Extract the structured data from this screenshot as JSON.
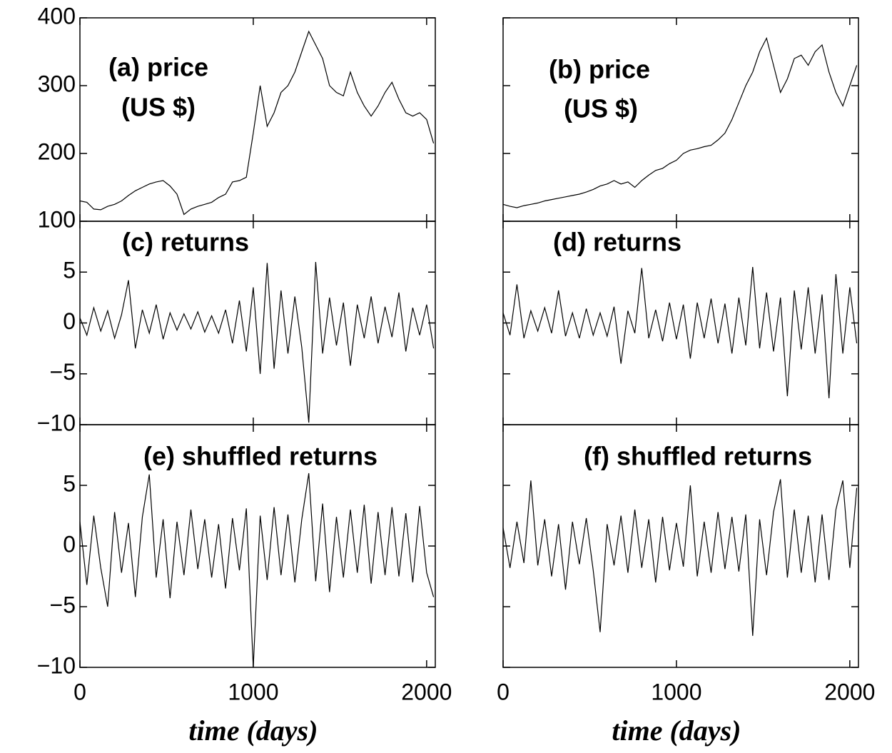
{
  "chart_data": [
    {
      "type": "line",
      "title": "(a) price",
      "subtitle": "(US $)",
      "x": [
        0,
        40,
        80,
        120,
        160,
        200,
        240,
        280,
        320,
        360,
        400,
        440,
        480,
        520,
        560,
        600,
        640,
        680,
        720,
        760,
        800,
        840,
        880,
        920,
        960,
        1000,
        1040,
        1080,
        1120,
        1160,
        1200,
        1240,
        1280,
        1320,
        1360,
        1400,
        1440,
        1480,
        1520,
        1560,
        1600,
        1640,
        1680,
        1720,
        1760,
        1800,
        1840,
        1880,
        1920,
        1960,
        2000,
        2040
      ],
      "values": [
        130,
        128,
        118,
        117,
        122,
        125,
        130,
        138,
        145,
        150,
        155,
        158,
        160,
        152,
        140,
        110,
        118,
        122,
        125,
        128,
        135,
        140,
        158,
        160,
        165,
        230,
        300,
        240,
        260,
        290,
        300,
        320,
        350,
        380,
        360,
        340,
        300,
        290,
        285,
        320,
        290,
        270,
        255,
        270,
        290,
        305,
        280,
        260,
        255,
        260,
        250,
        215
      ],
      "xlim": [
        0,
        2050
      ],
      "xticks": [
        0,
        1000,
        2000
      ],
      "ylim": [
        100,
        400
      ],
      "yticks": [
        100,
        200,
        300,
        400
      ],
      "color": "#000000"
    },
    {
      "type": "line",
      "title": "(b) price",
      "subtitle": "(US $)",
      "x": [
        0,
        40,
        80,
        120,
        160,
        200,
        240,
        280,
        320,
        360,
        400,
        440,
        480,
        520,
        560,
        600,
        640,
        680,
        720,
        760,
        800,
        840,
        880,
        920,
        960,
        1000,
        1040,
        1080,
        1120,
        1160,
        1200,
        1240,
        1280,
        1320,
        1360,
        1400,
        1440,
        1480,
        1520,
        1560,
        1600,
        1640,
        1680,
        1720,
        1760,
        1800,
        1840,
        1880,
        1920,
        1960,
        2000,
        2040
      ],
      "values": [
        125,
        122,
        120,
        123,
        125,
        127,
        130,
        132,
        134,
        136,
        138,
        140,
        143,
        147,
        152,
        155,
        160,
        155,
        158,
        150,
        160,
        168,
        175,
        178,
        185,
        190,
        200,
        205,
        207,
        210,
        212,
        220,
        230,
        250,
        275,
        300,
        320,
        350,
        370,
        330,
        290,
        310,
        340,
        345,
        330,
        350,
        360,
        320,
        290,
        270,
        300,
        330
      ],
      "xlim": [
        0,
        2050
      ],
      "xticks": [
        0,
        1000,
        2000
      ],
      "ylim": [
        100,
        400
      ],
      "yticks": [
        100,
        200,
        300,
        400
      ],
      "color": "#000000"
    },
    {
      "type": "line",
      "title": "(c) returns",
      "x": [
        0,
        40,
        80,
        120,
        160,
        200,
        240,
        280,
        320,
        360,
        400,
        440,
        480,
        520,
        560,
        600,
        640,
        680,
        720,
        760,
        800,
        840,
        880,
        920,
        960,
        1000,
        1040,
        1080,
        1120,
        1160,
        1200,
        1240,
        1280,
        1320,
        1360,
        1400,
        1440,
        1480,
        1520,
        1560,
        1600,
        1640,
        1680,
        1720,
        1760,
        1800,
        1840,
        1880,
        1920,
        1960,
        2000,
        2040
      ],
      "values": [
        0.5,
        -1.2,
        1.5,
        -0.8,
        1.2,
        -1.5,
        0.8,
        4.2,
        -2.5,
        1.3,
        -1.0,
        1.8,
        -1.6,
        1.0,
        -0.7,
        0.9,
        -0.6,
        1.1,
        -0.9,
        0.7,
        -1.0,
        1.3,
        -2.0,
        2.2,
        -2.8,
        3.5,
        -5.0,
        5.9,
        -4.5,
        3.2,
        -3.0,
        2.6,
        -2.4,
        -9.8,
        6.0,
        -3.0,
        2.5,
        -2.2,
        2.0,
        -4.2,
        1.8,
        -1.5,
        2.6,
        -2.0,
        1.6,
        -1.4,
        3.0,
        -2.8,
        1.5,
        -1.2,
        1.8,
        -2.5
      ],
      "xlim": [
        0,
        2050
      ],
      "xticks": [
        0,
        1000,
        2000
      ],
      "ylim": [
        -10,
        10
      ],
      "yticks": [
        {
          "value": -10,
          "label": "−10"
        },
        {
          "value": -5,
          "label": "−5"
        },
        0,
        5
      ],
      "color": "#000000"
    },
    {
      "type": "line",
      "title": "(d) returns",
      "x": [
        0,
        40,
        80,
        120,
        160,
        200,
        240,
        280,
        320,
        360,
        400,
        440,
        480,
        520,
        560,
        600,
        640,
        680,
        720,
        760,
        800,
        840,
        880,
        920,
        960,
        1000,
        1040,
        1080,
        1120,
        1160,
        1200,
        1240,
        1280,
        1320,
        1360,
        1400,
        1440,
        1480,
        1520,
        1560,
        1600,
        1640,
        1680,
        1720,
        1760,
        1800,
        1840,
        1880,
        1920,
        1960,
        2000,
        2040
      ],
      "values": [
        1.0,
        -1.2,
        3.8,
        -1.5,
        1.2,
        -0.8,
        1.5,
        -1.0,
        3.2,
        -1.3,
        1.0,
        -1.5,
        1.4,
        -1.2,
        1.0,
        -1.3,
        1.6,
        -4.0,
        1.2,
        -1.0,
        5.4,
        -1.5,
        1.3,
        -1.8,
        2.0,
        -1.6,
        1.8,
        -3.5,
        2.0,
        -1.5,
        2.4,
        -2.0,
        1.9,
        -3.0,
        2.5,
        -2.2,
        5.5,
        -2.5,
        3.0,
        -2.8,
        2.5,
        -7.2,
        3.2,
        -2.6,
        3.5,
        -3.0,
        2.8,
        -7.4,
        4.8,
        -3.0,
        3.5,
        -2.0
      ],
      "xlim": [
        0,
        2050
      ],
      "xticks": [
        0,
        1000,
        2000
      ],
      "ylim": [
        -10,
        10
      ],
      "yticks": [
        -10,
        -5,
        0,
        5
      ],
      "color": "#000000"
    },
    {
      "type": "line",
      "title": "(e) shuffled returns",
      "xlabel": "time (days)",
      "x": [
        0,
        40,
        80,
        120,
        160,
        200,
        240,
        280,
        320,
        360,
        400,
        440,
        480,
        520,
        560,
        600,
        640,
        680,
        720,
        760,
        800,
        840,
        880,
        920,
        960,
        1000,
        1040,
        1080,
        1120,
        1160,
        1200,
        1240,
        1280,
        1320,
        1360,
        1400,
        1440,
        1480,
        1520,
        1560,
        1600,
        1640,
        1680,
        1720,
        1760,
        1800,
        1840,
        1880,
        1920,
        1960,
        2000,
        2040
      ],
      "values": [
        2.0,
        -3.2,
        2.5,
        -1.8,
        -5.0,
        2.8,
        -2.2,
        1.9,
        -4.2,
        2.4,
        5.9,
        -2.6,
        2.2,
        -4.3,
        2.0,
        -2.4,
        3.0,
        -1.9,
        2.2,
        -2.6,
        1.8,
        -3.5,
        2.3,
        -2.0,
        3.1,
        -10,
        2.5,
        -2.8,
        3.2,
        -2.4,
        2.6,
        -3.0,
        2.2,
        6.0,
        -2.9,
        3.5,
        -3.8,
        2.4,
        -2.6,
        3.0,
        -2.2,
        3.4,
        -3.1,
        2.8,
        -2.4,
        3.2,
        -2.5,
        2.7,
        -3.0,
        3.3,
        -2.2,
        -4.2
      ],
      "xlim": [
        0,
        2050
      ],
      "xticks": [
        0,
        1000,
        2000
      ],
      "ylim": [
        -10,
        10
      ],
      "yticks": [
        {
          "value": -10,
          "label": "−10"
        },
        {
          "value": -5,
          "label": "−5"
        },
        0,
        5
      ],
      "color": "#000000"
    },
    {
      "type": "line",
      "title": "(f) shuffled returns",
      "xlabel": "time (days)",
      "x": [
        0,
        40,
        80,
        120,
        160,
        200,
        240,
        280,
        320,
        360,
        400,
        440,
        480,
        520,
        560,
        600,
        640,
        680,
        720,
        760,
        800,
        840,
        880,
        920,
        960,
        1000,
        1040,
        1080,
        1120,
        1160,
        1200,
        1240,
        1280,
        1320,
        1360,
        1400,
        1440,
        1480,
        1520,
        1560,
        1600,
        1640,
        1680,
        1720,
        1760,
        1800,
        1840,
        1880,
        1920,
        1960,
        2000,
        2040
      ],
      "values": [
        1.5,
        -1.8,
        2.0,
        -1.4,
        5.4,
        -1.6,
        2.2,
        -2.5,
        1.8,
        -3.6,
        2.0,
        -1.5,
        2.3,
        -2.0,
        -7.1,
        1.8,
        -1.6,
        2.5,
        -2.2,
        3.0,
        -1.8,
        2.2,
        -3.0,
        2.4,
        -2.0,
        1.9,
        -1.7,
        5.0,
        -2.5,
        2.0,
        -2.2,
        2.8,
        -1.9,
        2.4,
        -2.1,
        2.6,
        -7.4,
        2.2,
        -2.4,
        2.8,
        5.5,
        -2.6,
        3.0,
        -2.2,
        2.5,
        -3.0,
        2.6,
        -2.8,
        3.0,
        5.4,
        -1.8,
        4.8
      ],
      "xlim": [
        0,
        2050
      ],
      "xticks": [
        0,
        1000,
        2000
      ],
      "ylim": [
        -10,
        10
      ],
      "yticks": [
        -10,
        -5,
        0,
        5
      ],
      "color": "#000000"
    }
  ]
}
